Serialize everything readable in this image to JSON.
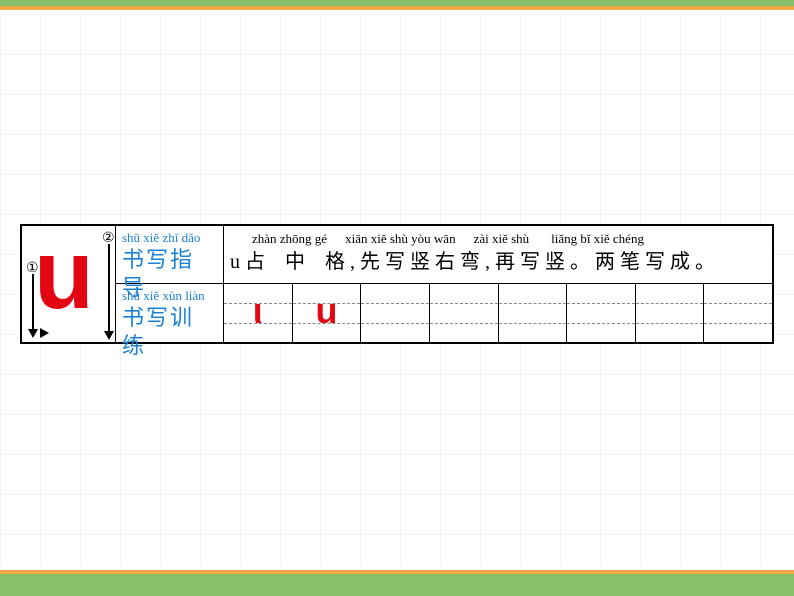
{
  "bars": {
    "top_green": "#86c06a",
    "top_orange": "#f2a64a",
    "bottom_green": "#86c06a",
    "bottom_orange": "#f2a64a"
  },
  "letter": {
    "glyph": "u",
    "color": "#e30613",
    "stroke_numbers": [
      "①",
      "②"
    ]
  },
  "guide_label": {
    "pinyin": "shū xiě zhǐ dǎo",
    "cn": "书写指导"
  },
  "guide_text": {
    "pinyin_segments": [
      {
        "text": "zhàn zhōng gé",
        "indent": 22
      },
      {
        "text": "xiān xiě shù yòu wān",
        "indent": 18
      },
      {
        "text": "zài xiě shù",
        "indent": 18
      },
      {
        "text": "liǎng bǐ xiě chéng",
        "indent": 22
      }
    ],
    "cn": "u 占　中　格 , 先 写 竖 右 弯 , 再 写 竖 。 两 笔 写 成 。"
  },
  "practice_label": {
    "pinyin": "shū xiě xùn liàn",
    "cn": "书写训练"
  },
  "practice_cells": [
    {
      "glyph": "ι",
      "filled": true
    },
    {
      "glyph": "u",
      "filled": true
    },
    {
      "glyph": "",
      "filled": false
    },
    {
      "glyph": "",
      "filled": false
    },
    {
      "glyph": "",
      "filled": false
    },
    {
      "glyph": "",
      "filled": false
    },
    {
      "glyph": "",
      "filled": false
    },
    {
      "glyph": "",
      "filled": false
    }
  ]
}
